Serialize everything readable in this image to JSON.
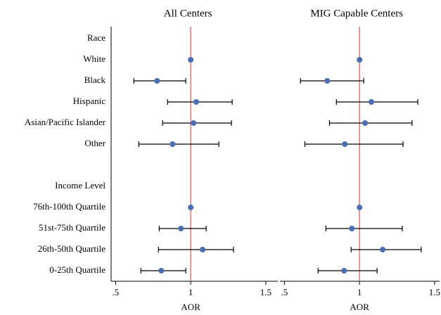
{
  "chart_data": {
    "type": "forest",
    "categories": [
      "Race",
      "White",
      "Black",
      "Hispanic",
      "Asian/Pacific Islander",
      "Other",
      null,
      "Income Level",
      "76th-100th Quartile",
      "51st-75th Quartile",
      "26th-50th Quartile",
      "0-25th Quartile"
    ],
    "xlim": [
      0.47,
      1.58
    ],
    "xticks": [
      {
        "value": 0.5,
        "label": ".5"
      },
      1,
      1.5
    ],
    "ref_line": 1,
    "ref_color": "#d9534f",
    "marker_color": "#4a6fba",
    "panels": [
      {
        "title": "All Centers",
        "xlabel": "AOR",
        "values": [
          null,
          1,
          0.776,
          1.037,
          1.019,
          0.879,
          null,
          null,
          1,
          0.935,
          1.079,
          0.804
        ],
        "lower": [
          null,
          null,
          0.621,
          0.846,
          0.813,
          0.654,
          null,
          null,
          null,
          0.79,
          0.785,
          0.668
        ],
        "upper": [
          null,
          null,
          0.967,
          1.276,
          1.271,
          1.187,
          null,
          null,
          null,
          1.103,
          1.285,
          0.967
        ]
      },
      {
        "title": "MIG Capable Centers",
        "xlabel": "AOR",
        "values": [
          null,
          1,
          0.785,
          1.079,
          1.037,
          0.902,
          null,
          null,
          1,
          0.949,
          1.154,
          0.897
        ],
        "lower": [
          null,
          null,
          0.607,
          0.846,
          0.8,
          0.636,
          null,
          null,
          null,
          0.776,
          0.944,
          0.724
        ],
        "upper": [
          null,
          null,
          1.028,
          1.388,
          1.35,
          1.29,
          null,
          null,
          null,
          1.285,
          1.411,
          1.117
        ]
      }
    ]
  }
}
